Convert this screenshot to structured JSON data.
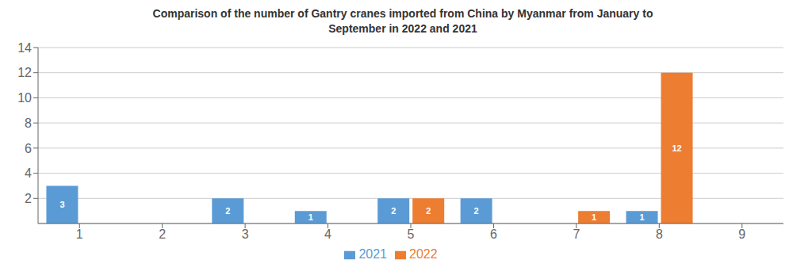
{
  "chart_data": {
    "type": "bar",
    "title": "Comparison of the number of Gantry cranes imported from China by Myanmar from January to\nSeptember in 2022 and 2021",
    "categories": [
      "1",
      "2",
      "3",
      "4",
      "5",
      "6",
      "7",
      "8",
      "9"
    ],
    "series": [
      {
        "name": "2021",
        "color": "#5B9BD5",
        "values": [
          3,
          0,
          2,
          1,
          2,
          2,
          0,
          1,
          0
        ]
      },
      {
        "name": "2022",
        "color": "#ED7D31",
        "values": [
          0,
          0,
          0,
          0,
          2,
          0,
          1,
          12,
          0
        ]
      }
    ],
    "ylim": [
      0,
      14
    ],
    "yticks": [
      2,
      4,
      6,
      8,
      10,
      12,
      14
    ],
    "grid": true,
    "legend": "bottom",
    "data_labels": true
  }
}
